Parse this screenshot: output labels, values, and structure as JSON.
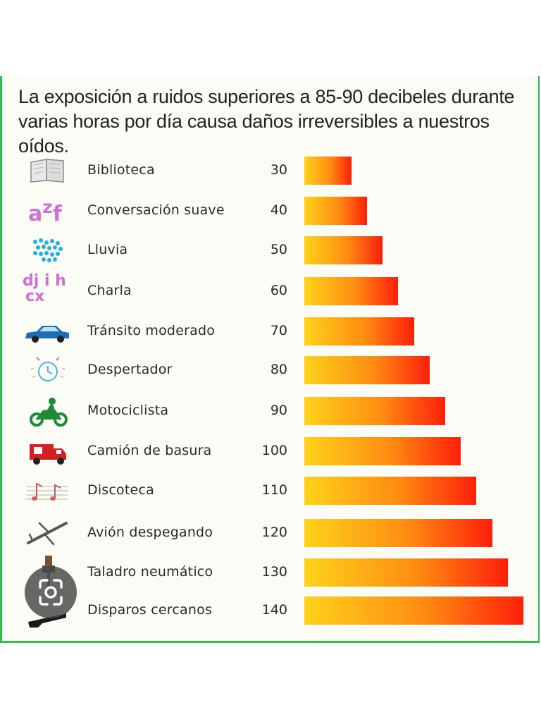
{
  "chart_data": {
    "type": "bar",
    "orientation": "horizontal",
    "title": "La exposición a ruidos superiores a 85-90 decibeles durante varias horas por día causa daños irreversibles a nuestros oídos.",
    "categories": [
      "Biblioteca",
      "Conversación suave",
      "Lluvia",
      "Charla",
      "Tránsito moderado",
      "Despertador",
      "Motociclista",
      "Camión de basura",
      "Discoteca",
      "Avión despegando",
      "Taladro neumático",
      "Disparos cercanos"
    ],
    "values": [
      30,
      40,
      50,
      60,
      70,
      80,
      90,
      100,
      110,
      120,
      130,
      140
    ],
    "value_labels": [
      "30",
      "40",
      "50",
      "60",
      "70",
      "80",
      "90",
      "100",
      "110",
      "120",
      "130",
      "140"
    ],
    "icons": [
      "book-icon",
      "letters-azf-icon",
      "rain-drops-icon",
      "letters-chatter-icon",
      "car-icon",
      "alarm-clock-icon",
      "motorcycle-icon",
      "garbage-truck-icon",
      "music-notes-icon",
      "airplane-icon",
      "drill-icon",
      "gun-icon"
    ],
    "icon_letters": {
      "azf": "a<sup>z</sup>f",
      "chatter_top": "dj i h",
      "chatter_bottom": "cx"
    },
    "xlim": [
      0,
      140
    ],
    "xlabel": "",
    "ylabel": "",
    "grid": false,
    "colors": {
      "bar_start": "#ffd21a",
      "bar_mid": "#ff8c12",
      "bar_end": "#ff1f0a",
      "border": "#2fbf4a"
    }
  }
}
